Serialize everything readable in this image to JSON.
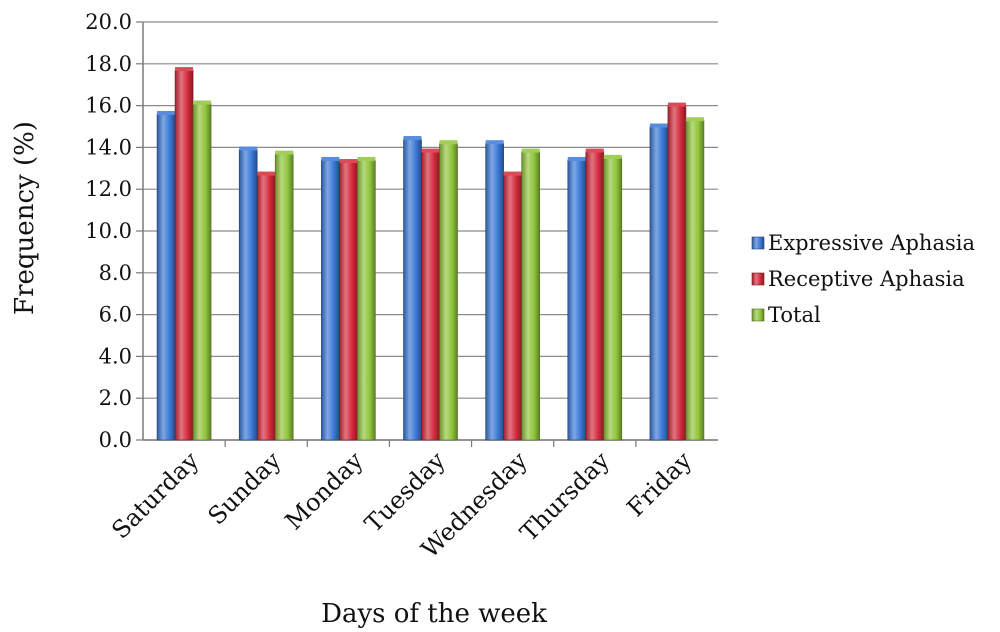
{
  "chart_data": {
    "type": "bar",
    "xlabel": "Days of the week",
    "ylabel": "Frequency (%)",
    "ylim": [
      0,
      20
    ],
    "yticks": [
      "0.0",
      "2.0",
      "4.0",
      "6.0",
      "8.0",
      "10.0",
      "12.0",
      "14.0",
      "16.0",
      "18.0",
      "20.0"
    ],
    "grid": true,
    "legend_position": "right",
    "categories": [
      "Saturday",
      "Sunday",
      "Monday",
      "Tuesday",
      "Wednesday",
      "Thursday",
      "Friday"
    ],
    "series": [
      {
        "name": "Expressive Aphasia",
        "color": "#3a78d6",
        "values": [
          15.6,
          13.9,
          13.4,
          14.4,
          14.2,
          13.4,
          15.0
        ]
      },
      {
        "name": "Receptive Aphasia",
        "color": "#d32b3b",
        "values": [
          17.7,
          12.7,
          13.3,
          13.8,
          12.7,
          13.8,
          16.0
        ]
      },
      {
        "name": "Total",
        "color": "#8fc43a",
        "values": [
          16.1,
          13.7,
          13.4,
          14.2,
          13.8,
          13.5,
          15.3
        ]
      }
    ]
  }
}
